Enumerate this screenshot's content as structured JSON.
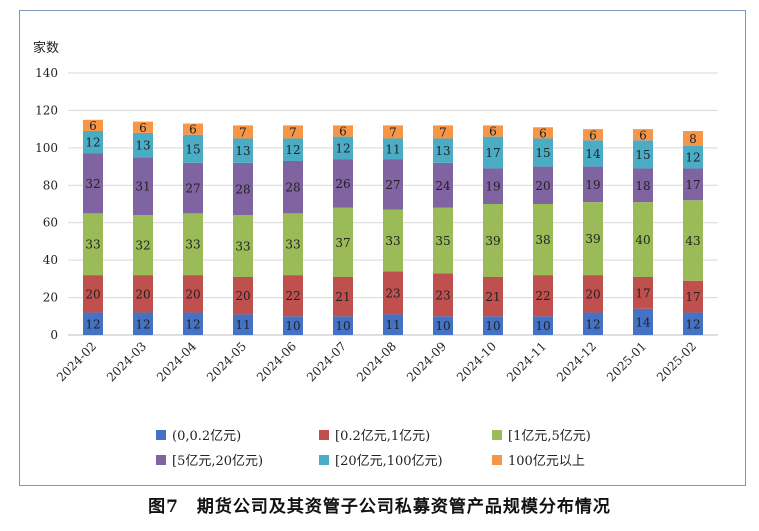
{
  "caption": "图7　期货公司及其资管子公司私募资管产品规模分布情况",
  "chart_data": {
    "type": "bar",
    "stacked": true,
    "ylabel": "家数",
    "ylim": [
      0,
      140
    ],
    "yticks": [
      0,
      20,
      40,
      60,
      80,
      100,
      120,
      140
    ],
    "grid": true,
    "legend_position": "bottom",
    "categories": [
      "2024-02",
      "2024-03",
      "2024-04",
      "2024-05",
      "2024-06",
      "2024-07",
      "2024-08",
      "2024-09",
      "2024-10",
      "2024-11",
      "2024-12",
      "2025-01",
      "2025-02"
    ],
    "series": [
      {
        "name": "(0,0.2亿元)",
        "color": "#4472c4",
        "values": [
          12,
          12,
          12,
          11,
          10,
          10,
          11,
          10,
          10,
          10,
          12,
          14,
          12
        ]
      },
      {
        "name": "[0.2亿元,1亿元)",
        "color": "#c0504d",
        "values": [
          20,
          20,
          20,
          20,
          22,
          21,
          23,
          23,
          21,
          22,
          20,
          17,
          17
        ]
      },
      {
        "name": "[1亿元,5亿元)",
        "color": "#9bbb59",
        "values": [
          33,
          32,
          33,
          33,
          33,
          37,
          33,
          35,
          39,
          38,
          39,
          40,
          43
        ]
      },
      {
        "name": "[5亿元,20亿元)",
        "color": "#8064a2",
        "values": [
          32,
          31,
          27,
          28,
          28,
          26,
          27,
          24,
          19,
          20,
          19,
          18,
          17
        ]
      },
      {
        "name": "[20亿元,100亿元)",
        "color": "#4bacc6",
        "values": [
          12,
          13,
          15,
          13,
          12,
          12,
          11,
          13,
          17,
          15,
          14,
          15,
          12
        ]
      },
      {
        "name": "100亿元以上",
        "color": "#f79646",
        "values": [
          6,
          6,
          6,
          7,
          7,
          6,
          7,
          7,
          6,
          6,
          6,
          6,
          8
        ]
      }
    ]
  }
}
